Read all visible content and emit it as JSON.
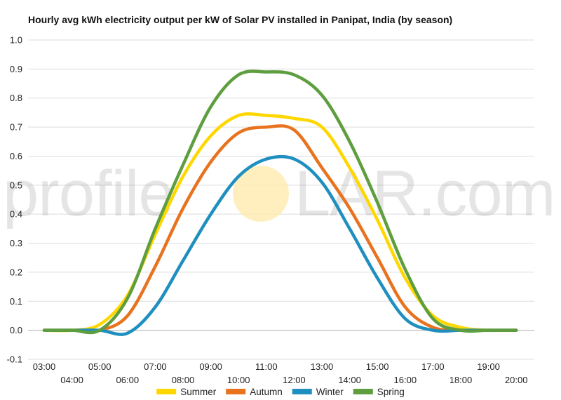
{
  "chart_data": {
    "type": "line",
    "title": "Hourly avg kWh electricity output per kW of Solar PV installed in Panipat, India (by season)",
    "xlabel": "",
    "ylabel": "",
    "x": [
      "03:00",
      "04:00",
      "05:00",
      "06:00",
      "07:00",
      "08:00",
      "09:00",
      "10:00",
      "11:00",
      "12:00",
      "13:00",
      "14:00",
      "15:00",
      "16:00",
      "17:00",
      "18:00",
      "19:00",
      "20:00"
    ],
    "ylim": [
      -0.1,
      1.0
    ],
    "yticks": [
      "-0.1",
      "0.0",
      "0.1",
      "0.2",
      "0.3",
      "0.4",
      "0.5",
      "0.6",
      "0.7",
      "0.8",
      "0.9",
      "1.0"
    ],
    "grid": true,
    "legend_position": "bottom",
    "series": [
      {
        "name": "Summer",
        "color": "#FFD700",
        "values": [
          0.0,
          0.0,
          0.02,
          0.12,
          0.33,
          0.53,
          0.67,
          0.74,
          0.74,
          0.73,
          0.7,
          0.56,
          0.38,
          0.18,
          0.05,
          0.01,
          0.0,
          0.0
        ]
      },
      {
        "name": "Autumn",
        "color": "#E8731F",
        "values": [
          0.0,
          0.0,
          0.0,
          0.05,
          0.22,
          0.42,
          0.58,
          0.68,
          0.7,
          0.69,
          0.56,
          0.42,
          0.25,
          0.08,
          0.01,
          0.0,
          0.0,
          0.0
        ]
      },
      {
        "name": "Winter",
        "color": "#1F8FBF",
        "values": [
          0.0,
          0.0,
          0.0,
          -0.01,
          0.08,
          0.24,
          0.4,
          0.53,
          0.59,
          0.59,
          0.51,
          0.35,
          0.18,
          0.04,
          0.0,
          0.0,
          0.0,
          0.0
        ]
      },
      {
        "name": "Spring",
        "color": "#5E9E3E",
        "values": [
          0.0,
          0.0,
          0.0,
          0.11,
          0.35,
          0.57,
          0.77,
          0.88,
          0.89,
          0.88,
          0.81,
          0.65,
          0.44,
          0.21,
          0.04,
          0.0,
          0.0,
          0.0
        ]
      }
    ]
  },
  "watermark": {
    "text_left": "profile",
    "text_right": "LAR.com",
    "sun_color": "#FFE9A8"
  }
}
